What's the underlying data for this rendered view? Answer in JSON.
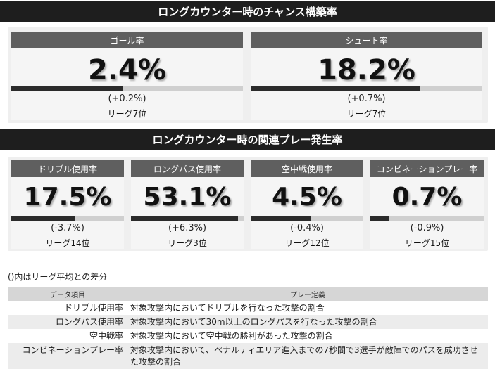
{
  "section1": {
    "title": "ロングカウンター時のチャンス構築率",
    "cards": [
      {
        "title": "ゴール率",
        "value": "2.4%",
        "diff": "(+0.2%)",
        "rank": "リーグ7位",
        "bar": 0.48
      },
      {
        "title": "シュート率",
        "value": "18.2%",
        "diff": "(+0.7%)",
        "rank": "リーグ7位",
        "bar": 0.73
      }
    ]
  },
  "section2": {
    "title": "ロングカウンター時の関連プレー発生率",
    "cards": [
      {
        "title": "ドリブル使用率",
        "value": "17.5%",
        "diff": "(-3.7%)",
        "rank": "リーグ14位",
        "bar": 0.57
      },
      {
        "title": "ロングパス使用率",
        "value": "53.1%",
        "diff": "(+6.3%)",
        "rank": "リーグ3位",
        "bar": 0.95
      },
      {
        "title": "空中戦使用率",
        "value": "4.5%",
        "diff": "(-0.4%)",
        "rank": "リーグ12位",
        "bar": 0.53
      },
      {
        "title": "コンビネーションプレー率",
        "value": "0.7%",
        "diff": "(-0.9%)",
        "rank": "リーグ15位",
        "bar": 0.17
      }
    ]
  },
  "note": "()内はリーグ平均との差分",
  "table": {
    "headers": [
      "データ項目",
      "プレー定義"
    ],
    "rows": [
      {
        "term": "ドリブル使用率",
        "definition": "対象攻撃内においてドリブルを行なった攻撃の割合"
      },
      {
        "term": "ロングパス使用率",
        "definition": "対象攻撃内において30m以上のロングパスを行なった攻撃の割合"
      },
      {
        "term": "空中戦率",
        "definition": "対象攻撃内において空中戦の勝利があった攻撃の割合"
      },
      {
        "term": "コンビネーションプレー率",
        "definition": "対象攻撃内において、ペナルティエリア進入までの7秒間で3選手が敵陣でのパスを成功させた攻撃の割合"
      }
    ]
  }
}
